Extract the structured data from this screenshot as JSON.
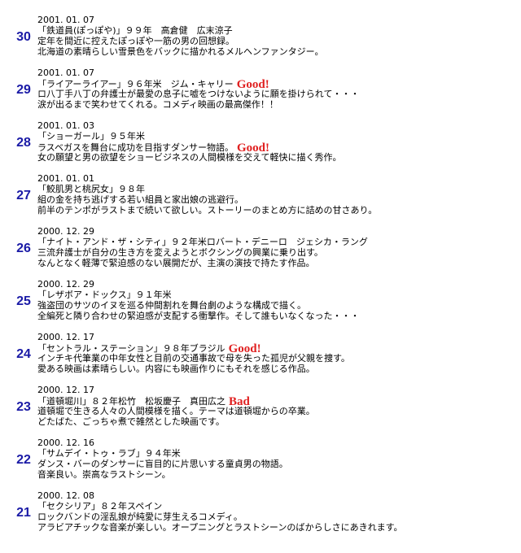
{
  "entries": [
    {
      "number": "30",
      "date": "2001. 01. 07",
      "title": "「鉄道員(ぽっぽや)」９９年　高倉健　広末涼子",
      "lines": [
        "定年を間近に控えたぽっぽや一筋の男の回想録。",
        "北海道の素晴らしい雪景色をバックに描かれるメルヘンファンタジー。"
      ]
    },
    {
      "number": "29",
      "date": "2001. 01. 07",
      "title": "「ライアーライアー」９６年米　ジム・キャリー",
      "rating": "Good!",
      "lines": [
        "ロ八丁手八丁の弁護士が最愛の息子に嘘をつけないように願を掛けられて・・・",
        "涙が出るまで笑わせてくれる。コメディ映画の最高傑作！！"
      ]
    },
    {
      "number": "28",
      "date": "2001. 01. 03",
      "title": "「ショーガール」９５年米",
      "rating": "Good!",
      "lines": [
        "ラスベガスを舞台に成功を目指すダンサー物語。",
        "女の願望と男の欲望をショービジネスの人間模様を交えて軽快に描く秀作。"
      ]
    },
    {
      "number": "27",
      "date": "2001. 01. 01",
      "title": "「鮫肌男と桃尻女」９８年",
      "lines": [
        "組の金を持ち逃げする若い組員と家出娘の逃避行。",
        "前半のテンポがラストまで続いて欲しい。ストーリーのまとめ方に詰めの甘さあり。"
      ]
    },
    {
      "number": "26",
      "date": "2000. 12. 29",
      "title": "「ナイト・アンド・ザ・シティ」９２年米ロバート・デニーロ　ジェシカ・ラング",
      "lines": [
        "三流弁護士が自分の生き方を変えようとボクシングの興業に乗り出す。",
        "なんとなく軽薄で緊迫感のない展開だが、主演の演技で持たす作品。"
      ]
    },
    {
      "number": "25",
      "date": "2000. 12. 29",
      "title": "「レザボア・ドックス」９１年米",
      "lines": [
        "強盗団のサツのイヌを巡る仲間割れを舞台劇のような構成で描く。",
        "全編死と隣り合わせの緊迫感が支配する衝撃作。そして誰もいなくなった・・・"
      ]
    },
    {
      "number": "24",
      "date": "2000. 12. 17",
      "title": "「セントラル・ステーション」９８年ブラジル",
      "rating": "Good!",
      "lines": [
        "インチキ代筆業の中年女性と目前の交通事故で母を失った孤児が父親を捜す。",
        "愛ある映画は素晴らしい。内容にも映画作りにもそれを感じる作品。"
      ]
    },
    {
      "number": "23",
      "date": "2000. 12. 17",
      "title": "「道頓堀川」８２年松竹　松坂慶子　真田広之",
      "rating": "Bad",
      "lines": [
        "道頓堀で生きる人々の人間模様を描く。テーマは道頓堀からの卒業。",
        "どたばた、ごっちゃ煮で雑然とした映画です。"
      ]
    },
    {
      "number": "22",
      "date": "2000. 12. 16",
      "title": "「サムデイ・トゥ・ラブ」９４年米",
      "lines": [
        "ダンス・バーのダンサーに盲目的に片思いする童貞男の物語。",
        "音楽良い。崇高なラストシーン。"
      ]
    },
    {
      "number": "21",
      "date": "2000. 12. 08",
      "title": "「セクシリア」８２年スペイン",
      "lines": [
        "ロックバンドの淫乱娘が純愛に芽生えるコメディ。",
        "アラビアチックな音楽が楽しい。オープニングとラストシーンのばからしさにあきれます。"
      ]
    }
  ]
}
